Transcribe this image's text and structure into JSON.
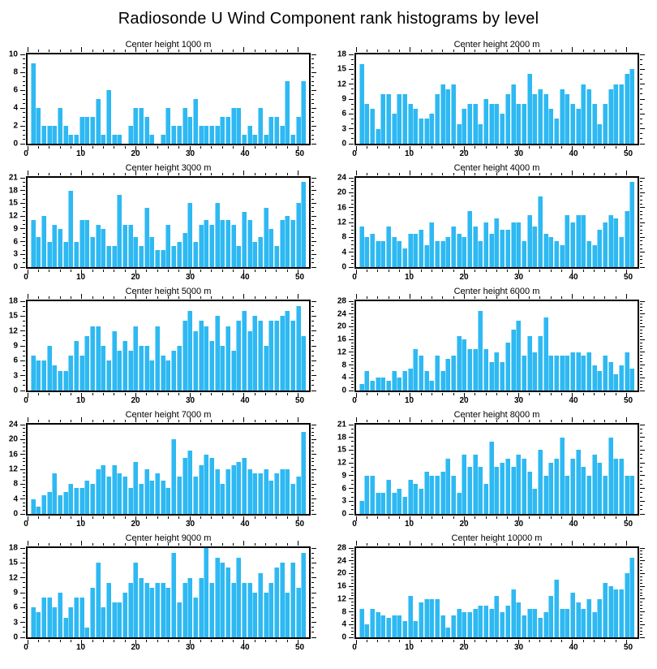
{
  "page": {
    "title": "Radiosonde U Wind Component rank histograms by level"
  },
  "colors": {
    "bar": "#2EB9F2",
    "axis": "#000000",
    "background": "#FFFFFF"
  },
  "chart_data": [
    {
      "type": "bar",
      "title": "Center height 1000 m",
      "xlabel": "",
      "ylabel": "",
      "xlim": [
        0,
        52
      ],
      "xticks": [
        0,
        10,
        20,
        30,
        40,
        50
      ],
      "xminor_step": 2,
      "ylim": [
        0,
        10
      ],
      "ytick_step": 2,
      "yminor_step": 0.5,
      "grid": false,
      "values": [
        9,
        4,
        2,
        2,
        2,
        4,
        2,
        1,
        1,
        3,
        3,
        3,
        5,
        1,
        6,
        1,
        1,
        0,
        2,
        4,
        4,
        3,
        1,
        0,
        1,
        4,
        2,
        2,
        4,
        3,
        5,
        2,
        2,
        2,
        2,
        3,
        3,
        4,
        4,
        1,
        2,
        1,
        4,
        1,
        3,
        3,
        2,
        7,
        1,
        3,
        7
      ]
    },
    {
      "type": "bar",
      "title": "Center height 2000 m",
      "xlabel": "",
      "ylabel": "",
      "xlim": [
        0,
        52
      ],
      "xticks": [
        0,
        10,
        20,
        30,
        40,
        50
      ],
      "xminor_step": 2,
      "ylim": [
        0,
        18
      ],
      "ytick_step": 3,
      "yminor_step": 1,
      "grid": false,
      "values": [
        16,
        8,
        7,
        3,
        10,
        10,
        6,
        10,
        10,
        8,
        7,
        5,
        5,
        6,
        10,
        12,
        11,
        12,
        4,
        7,
        8,
        8,
        4,
        9,
        8,
        8,
        6,
        10,
        12,
        8,
        8,
        14,
        10,
        11,
        10,
        7,
        5,
        11,
        10,
        8,
        7,
        12,
        11,
        8,
        4,
        8,
        11,
        12,
        12,
        14,
        15
      ]
    },
    {
      "type": "bar",
      "title": "Center height 3000 m",
      "xlabel": "",
      "ylabel": "",
      "xlim": [
        0,
        52
      ],
      "xticks": [
        0,
        10,
        20,
        30,
        40,
        50
      ],
      "xminor_step": 2,
      "ylim": [
        0,
        21
      ],
      "ytick_step": 3,
      "yminor_step": 1,
      "grid": false,
      "values": [
        11,
        7,
        12,
        6,
        10,
        9,
        6,
        18,
        6,
        11,
        11,
        7,
        10,
        9,
        5,
        5,
        17,
        10,
        10,
        7,
        5,
        14,
        7,
        4,
        4,
        10,
        5,
        6,
        8,
        15,
        6,
        10,
        11,
        10,
        15,
        11,
        11,
        10,
        5,
        13,
        11,
        6,
        7,
        14,
        9,
        5,
        11,
        12,
        11,
        15,
        20
      ]
    },
    {
      "type": "bar",
      "title": "Center height 4000 m",
      "xlabel": "",
      "ylabel": "",
      "xlim": [
        0,
        52
      ],
      "xticks": [
        0,
        10,
        20,
        30,
        40,
        50
      ],
      "xminor_step": 2,
      "ylim": [
        0,
        24
      ],
      "ytick_step": 4,
      "yminor_step": 1,
      "grid": false,
      "values": [
        11,
        8,
        9,
        7,
        7,
        11,
        8,
        7,
        5,
        9,
        9,
        10,
        6,
        12,
        7,
        7,
        8,
        11,
        9,
        8,
        15,
        11,
        7,
        12,
        9,
        13,
        10,
        10,
        12,
        12,
        7,
        14,
        11,
        19,
        9,
        8,
        7,
        6,
        14,
        12,
        14,
        14,
        7,
        6,
        10,
        12,
        14,
        13,
        8,
        15,
        23
      ]
    },
    {
      "type": "bar",
      "title": "Center height 5000 m",
      "xlabel": "",
      "ylabel": "",
      "xlim": [
        0,
        52
      ],
      "xticks": [
        0,
        10,
        20,
        30,
        40,
        50
      ],
      "xminor_step": 2,
      "ylim": [
        0,
        18
      ],
      "ytick_step": 3,
      "yminor_step": 1,
      "grid": false,
      "values": [
        7,
        6,
        6,
        9,
        5,
        4,
        4,
        7,
        10,
        7,
        11,
        13,
        13,
        9,
        6,
        12,
        8,
        10,
        8,
        13,
        9,
        9,
        6,
        13,
        7,
        6,
        8,
        9,
        14,
        16,
        12,
        14,
        13,
        10,
        15,
        9,
        13,
        8,
        14,
        16,
        12,
        15,
        14,
        9,
        14,
        14,
        15,
        16,
        14,
        17,
        11
      ]
    },
    {
      "type": "bar",
      "title": "Center height 6000 m",
      "xlabel": "",
      "ylabel": "",
      "xlim": [
        0,
        52
      ],
      "xticks": [
        0,
        10,
        20,
        30,
        40,
        50
      ],
      "xminor_step": 2,
      "ylim": [
        0,
        28
      ],
      "ytick_step": 4,
      "yminor_step": 1,
      "grid": false,
      "values": [
        2,
        6,
        3,
        4,
        4,
        3,
        6,
        4,
        6,
        7,
        13,
        11,
        6,
        3,
        11,
        6,
        10,
        11,
        17,
        16,
        13,
        13,
        25,
        13,
        9,
        12,
        9,
        15,
        19,
        22,
        11,
        17,
        12,
        17,
        23,
        11,
        11,
        11,
        11,
        12,
        12,
        11,
        12,
        8,
        6,
        11,
        9,
        5,
        8,
        12,
        7
      ]
    },
    {
      "type": "bar",
      "title": "Center height 7000 m",
      "xlabel": "",
      "ylabel": "",
      "xlim": [
        0,
        52
      ],
      "xticks": [
        0,
        10,
        20,
        30,
        40,
        50
      ],
      "xminor_step": 2,
      "ylim": [
        0,
        24
      ],
      "ytick_step": 4,
      "yminor_step": 1,
      "grid": false,
      "values": [
        4,
        2,
        5,
        6,
        11,
        5,
        6,
        8,
        7,
        7,
        9,
        8,
        12,
        13,
        10,
        13,
        11,
        10,
        7,
        14,
        8,
        12,
        9,
        11,
        9,
        7,
        20,
        10,
        15,
        17,
        10,
        13,
        16,
        15,
        12,
        8,
        12,
        13,
        14,
        15,
        12,
        11,
        11,
        12,
        9,
        11,
        12,
        12,
        8,
        10,
        22
      ]
    },
    {
      "type": "bar",
      "title": "Center height 8000 m",
      "xlabel": "",
      "ylabel": "",
      "xlim": [
        0,
        52
      ],
      "xticks": [
        0,
        10,
        20,
        30,
        40,
        50
      ],
      "xminor_step": 2,
      "ylim": [
        0,
        21
      ],
      "ytick_step": 3,
      "yminor_step": 1,
      "grid": false,
      "values": [
        3,
        9,
        9,
        5,
        5,
        8,
        5,
        6,
        4,
        8,
        7,
        6,
        10,
        9,
        9,
        10,
        13,
        9,
        5,
        14,
        11,
        14,
        11,
        7,
        17,
        11,
        12,
        13,
        11,
        14,
        13,
        10,
        6,
        15,
        9,
        12,
        13,
        18,
        9,
        13,
        15,
        11,
        9,
        14,
        12,
        9,
        18,
        13,
        13,
        9,
        9
      ]
    },
    {
      "type": "bar",
      "title": "Center height 9000 m",
      "xlabel": "",
      "ylabel": "",
      "xlim": [
        0,
        52
      ],
      "xticks": [
        0,
        10,
        20,
        30,
        40,
        50
      ],
      "xminor_step": 2,
      "ylim": [
        0,
        18
      ],
      "ytick_step": 3,
      "yminor_step": 1,
      "grid": false,
      "values": [
        6,
        5,
        8,
        8,
        6,
        9,
        4,
        6,
        8,
        8,
        2,
        10,
        15,
        6,
        11,
        7,
        7,
        9,
        11,
        15,
        12,
        11,
        10,
        11,
        11,
        10,
        17,
        7,
        11,
        12,
        8,
        12,
        18,
        11,
        16,
        15,
        14,
        11,
        16,
        11,
        11,
        9,
        13,
        9,
        11,
        14,
        15,
        9,
        15,
        10,
        17
      ]
    },
    {
      "type": "bar",
      "title": "Center height 10000 m",
      "xlabel": "",
      "ylabel": "",
      "xlim": [
        0,
        52
      ],
      "xticks": [
        0,
        10,
        20,
        30,
        40,
        50
      ],
      "xminor_step": 2,
      "ylim": [
        0,
        28
      ],
      "ytick_step": 4,
      "yminor_step": 1,
      "grid": false,
      "values": [
        9,
        4,
        9,
        8,
        7,
        6,
        7,
        7,
        5,
        13,
        5,
        11,
        12,
        12,
        12,
        7,
        3,
        7,
        9,
        8,
        8,
        9,
        10,
        10,
        9,
        13,
        8,
        10,
        15,
        11,
        7,
        9,
        9,
        6,
        8,
        13,
        18,
        9,
        9,
        14,
        11,
        9,
        12,
        8,
        12,
        17,
        16,
        15,
        15,
        20,
        25
      ]
    }
  ]
}
